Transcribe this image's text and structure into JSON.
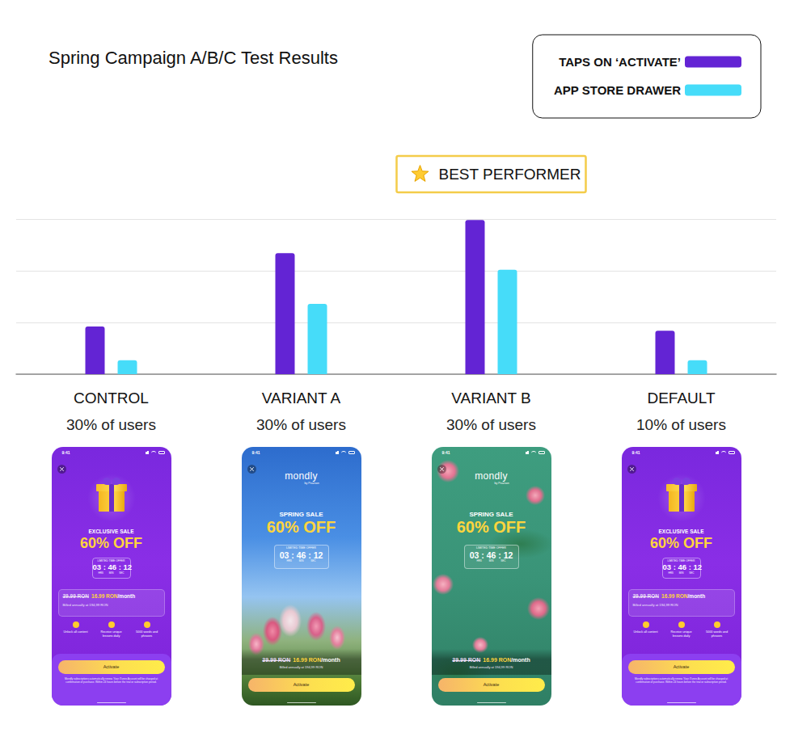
{
  "chart_data": {
    "type": "bar",
    "title": "Spring Campaign A/B/C Test Results",
    "categories": [
      "CONTROL",
      "VARIANT A",
      "VARIANT B",
      "DEFAULT"
    ],
    "user_share_labels": [
      "30% of users",
      "30% of users",
      "30% of users",
      "10% of users"
    ],
    "series": [
      {
        "name": "TAPS ON ‘ACTIVATE’",
        "color": "#6324d4",
        "values": [
          0.92,
          2.34,
          2.98,
          0.84
        ]
      },
      {
        "name": "APP STORE DRAWER",
        "color": "#46dcf9",
        "values": [
          0.27,
          1.36,
          2.02,
          0.27
        ]
      }
    ],
    "ylim": [
      0,
      3
    ],
    "yticks": [
      0,
      1,
      2,
      3
    ],
    "grid": true,
    "tick_labels": "x",
    "legend": "top-right",
    "annotations": [
      {
        "text": "BEST PERFORMER",
        "category": "VARIANT B"
      }
    ]
  },
  "screens": [
    {
      "status_time": "9:41",
      "headline": "EXCLUSIVE SALE",
      "discount": "60% OFF",
      "timer_title": "LIMITED TIME OFFER",
      "timer": "03 : 46 : 12",
      "timer_units": [
        "HRS",
        "MIN",
        "SEC"
      ],
      "old_price": "39.99 RON",
      "new_price": "16.99 RON",
      "price_period": "/month",
      "billing": "Billed annually at 194,99 RON",
      "features": [
        "Unlock all content",
        "Receive unique lessons daily",
        "5000 words and phrases"
      ],
      "button": "Activate",
      "legal": "Mondly subscriptions automatically renew. Your iTunes Account will be charged at confirmation of purchase. Within 24 hours before the trial or subscription period."
    },
    {
      "status_time": "9:41",
      "brand": "mondly",
      "brand_sub": "by Pearson",
      "headline": "SPRING SALE",
      "discount": "60% OFF",
      "timer_title": "LIMITED TIME OFFER",
      "timer": "03 : 46 : 12",
      "timer_units": [
        "HRS",
        "MIN",
        "SEC"
      ],
      "old_price": "39.99 RON",
      "new_price": "16.99 RON",
      "price_period": "/month",
      "billing": "Billed annually at 194,99 RON",
      "button": "Activate"
    },
    {
      "status_time": "9:41",
      "brand": "mondly",
      "brand_sub": "by Pearson",
      "headline": "SPRING SALE",
      "discount": "60% OFF",
      "timer_title": "LIMITED TIME OFFER",
      "timer": "03 : 46 : 12",
      "timer_units": [
        "HRS",
        "MIN",
        "SEC"
      ],
      "old_price": "39.99 RON",
      "new_price": "16.99 RON",
      "price_period": "/month",
      "billing": "Billed annually at 194,99 RON",
      "button": "Activate"
    },
    {
      "status_time": "9:41",
      "headline": "EXCLUSIVE SALE",
      "discount": "60% OFF",
      "timer_title": "LIMITED TIME OFFER",
      "timer": "03 : 46 : 12",
      "timer_units": [
        "HRS",
        "MIN",
        "SEC"
      ],
      "old_price": "39.99 RON",
      "new_price": "16.99 RON",
      "price_period": "/month",
      "billing": "Billed annually at 194,99 RON",
      "features": [
        "Unlock all content",
        "Receive unique lessons daily",
        "5000 words and phrases"
      ],
      "button": "Activate",
      "legal": "Mondly subscriptions automatically renew. Your iTunes Account will be charged at confirmation of purchase. Within 24 hours before the trial or subscription period."
    }
  ]
}
